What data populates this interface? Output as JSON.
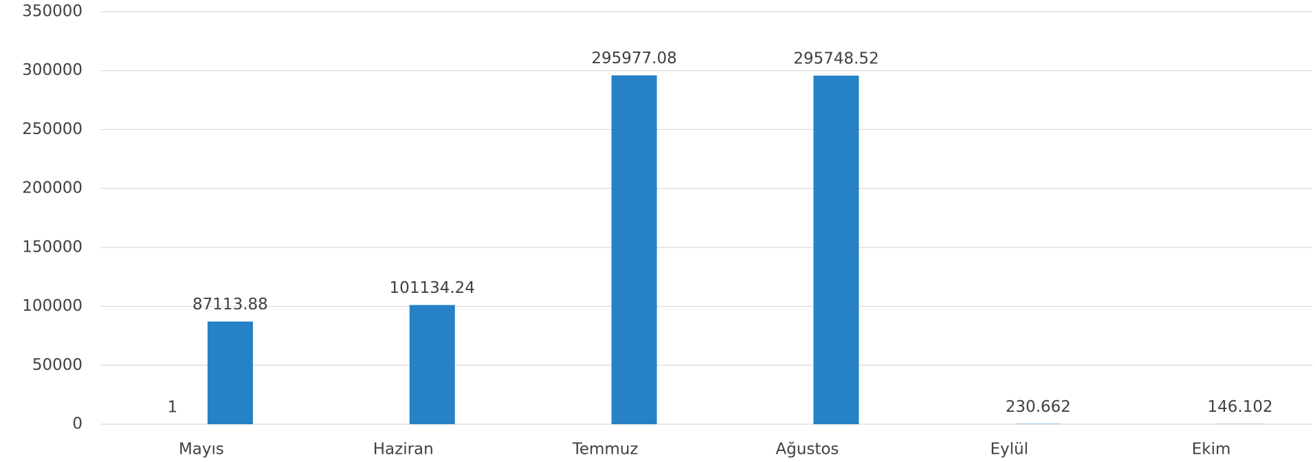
{
  "chart_data": {
    "type": "bar",
    "categories": [
      "Mayıs",
      "Haziran",
      "Temmuz",
      "Ağustos",
      "Eylül",
      "Ekim"
    ],
    "series": [
      {
        "color": "#a5a5a5",
        "values": [
          1,
          null,
          null,
          null,
          null,
          null
        ]
      },
      {
        "color": "#2681c6",
        "values": [
          87113.88,
          101134.24,
          295977.08,
          295748.52,
          230.662,
          146.102
        ]
      }
    ],
    "ylim": [
      0,
      350000
    ],
    "yticks": [
      0,
      50000,
      100000,
      150000,
      200000,
      250000,
      300000,
      350000
    ],
    "grid": true
  }
}
